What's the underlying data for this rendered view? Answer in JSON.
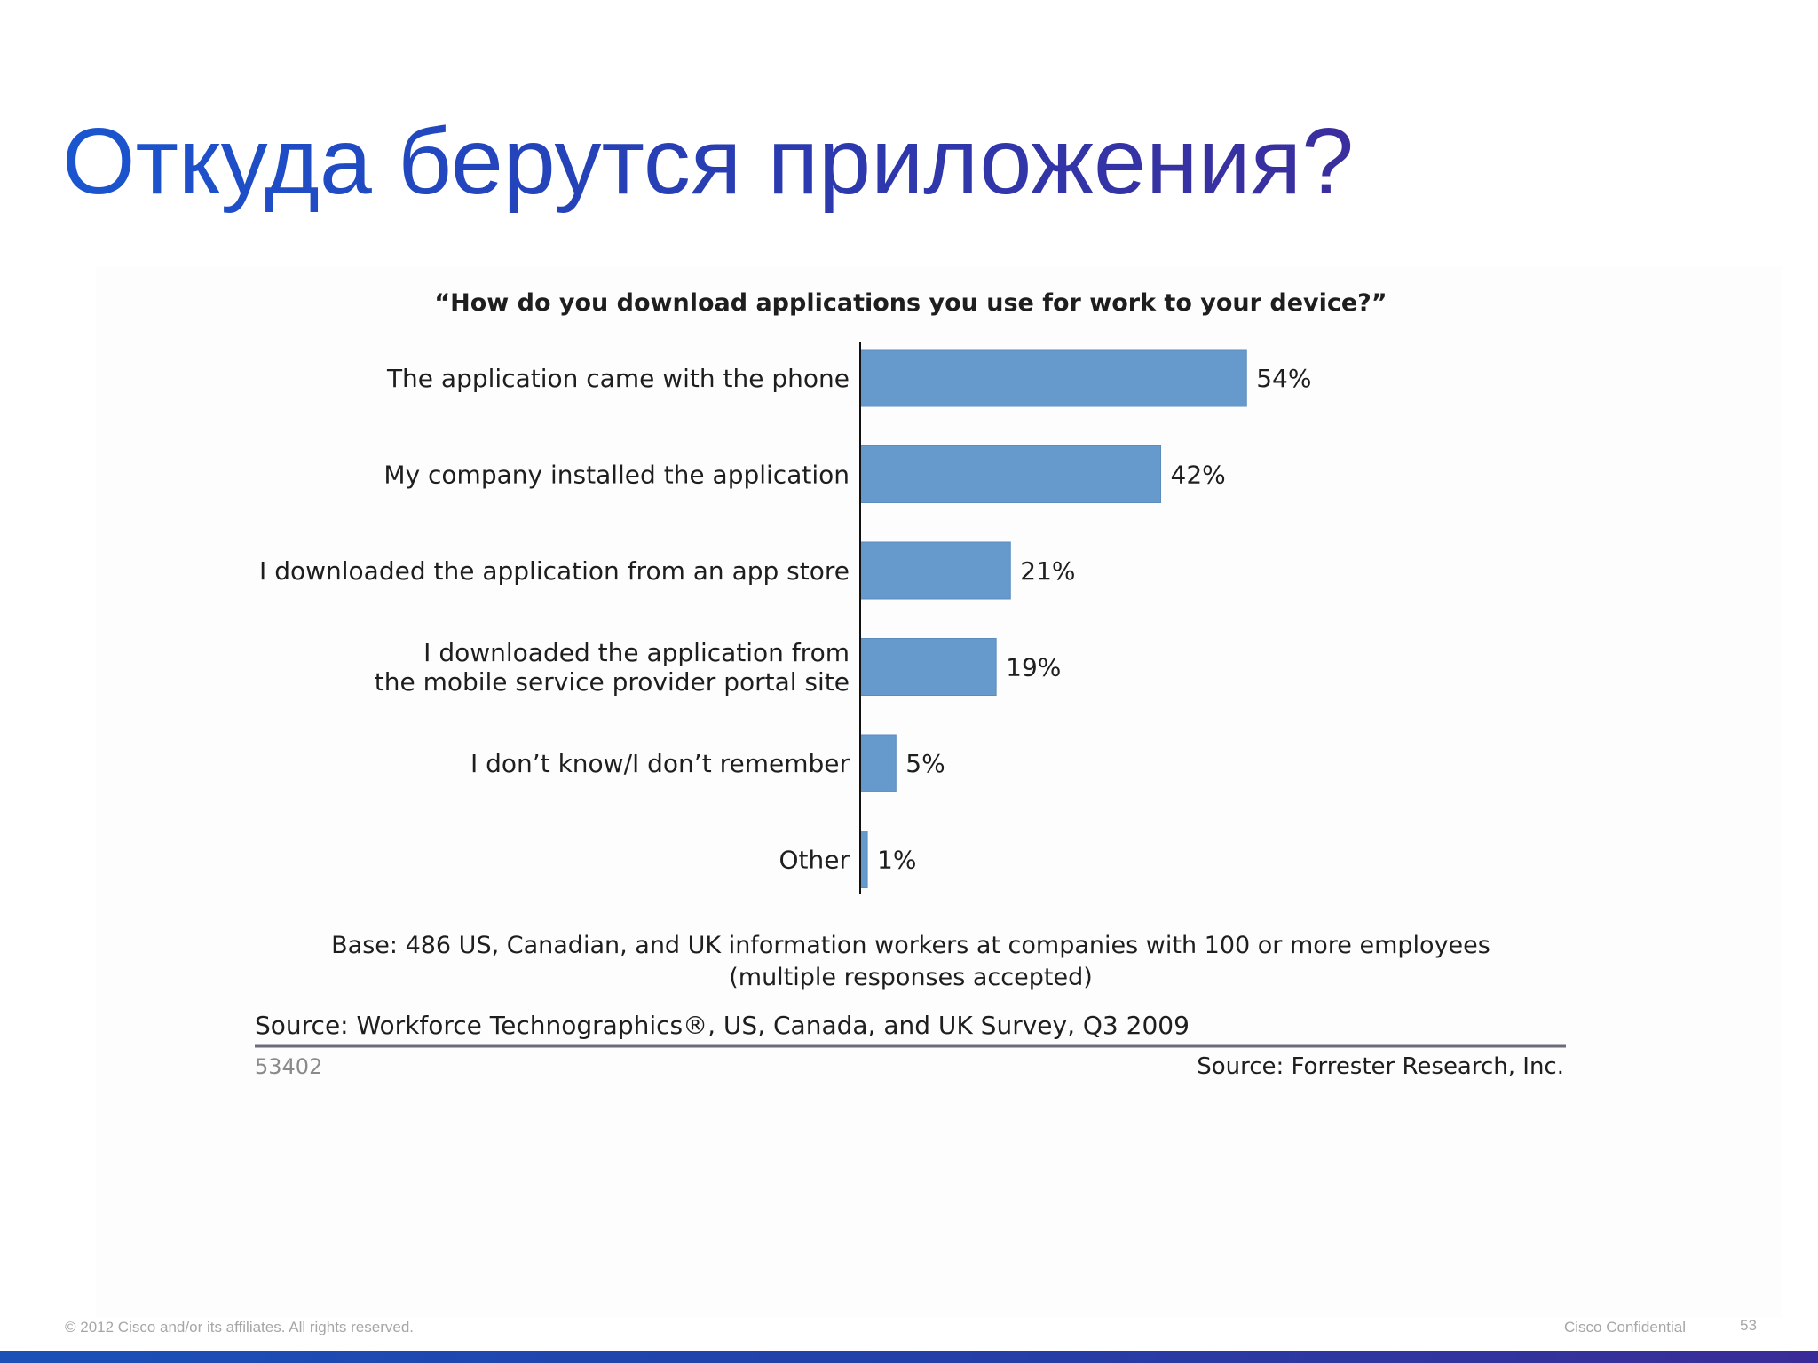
{
  "slide": {
    "title": "Откуда берутся приложения?",
    "footer_copyright": "© 2012 Cisco and/or its affiliates. All rights reserved.",
    "footer_confidential": "Cisco Confidential",
    "page_number": "53",
    "accent_color": "#1f4fc4",
    "band_color": "#2340a8"
  },
  "chart_data": {
    "type": "bar",
    "orientation": "horizontal",
    "title": "“How do you download applications you use for work to your device?”",
    "categories": [
      [
        "The application came with the phone"
      ],
      [
        "My company installed the application"
      ],
      [
        "I downloaded the application from an app store"
      ],
      [
        "I downloaded the application from",
        "the mobile service provider portal site"
      ],
      [
        "I don’t know/I don’t remember"
      ],
      [
        "Other"
      ]
    ],
    "values": [
      54,
      42,
      21,
      19,
      5,
      1
    ],
    "value_labels": [
      "54%",
      "42%",
      "21%",
      "19%",
      "5%",
      "1%"
    ],
    "unit": "%",
    "xlim": [
      0,
      100
    ],
    "bar_color": "#6699cc",
    "base_note": [
      "Base: 486 US, Canadian, and UK information workers at companies with 100 or more employees",
      "(multiple responses accepted)"
    ],
    "source_survey": "Source: Workforce Technographics®, US, Canada, and UK Survey, Q3 2009",
    "figure_id": "53402",
    "source_credit": "Source: Forrester Research, Inc."
  }
}
